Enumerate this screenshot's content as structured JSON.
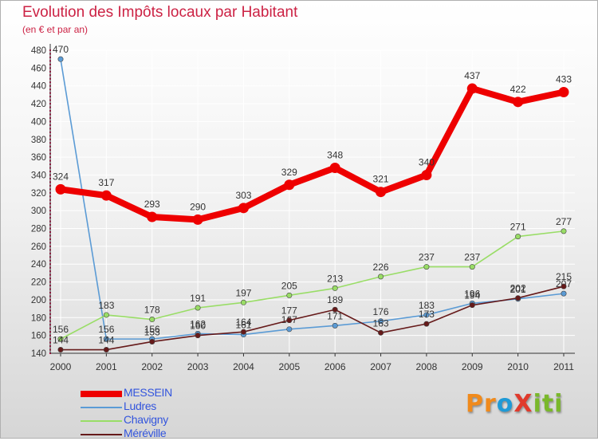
{
  "title": "Evolution des Impôts locaux par Habitant",
  "subtitle": "(en € et par an)",
  "logo_text": "ProXiti",
  "colors": {
    "title": "#cc2244",
    "legend_text": "#3355dd",
    "grid": "#ffffff",
    "axis_dots": "#e2004a"
  },
  "chart_data": {
    "type": "line",
    "title": "Evolution des Impôts locaux par Habitant",
    "subtitle": "(en € et par an)",
    "xlabel": "",
    "ylabel": "",
    "categories": [
      "2000",
      "2001",
      "2002",
      "2003",
      "2004",
      "2005",
      "2006",
      "2007",
      "2008",
      "2009",
      "2010",
      "2011"
    ],
    "ylim": [
      140,
      480
    ],
    "yticks": [
      140,
      160,
      180,
      200,
      220,
      240,
      260,
      280,
      300,
      320,
      340,
      360,
      380,
      400,
      420,
      440,
      460,
      480
    ],
    "grid": true,
    "legend_position": "bottom-left",
    "series": [
      {
        "name": "MESSEIN",
        "color": "#ee0000",
        "emphasis": true,
        "values": [
          324,
          317,
          293,
          290,
          303,
          329,
          348,
          321,
          340,
          437,
          422,
          433
        ]
      },
      {
        "name": "Ludres",
        "color": "#5b9bd5",
        "emphasis": false,
        "values": [
          470,
          156,
          156,
          162,
          161,
          167,
          171,
          176,
          183,
          196,
          201,
          207
        ]
      },
      {
        "name": "Chavigny",
        "color": "#99dd66",
        "emphasis": false,
        "values": [
          156,
          183,
          178,
          191,
          197,
          205,
          213,
          226,
          237,
          237,
          271,
          277
        ]
      },
      {
        "name": "Méréville",
        "color": "#661a1a",
        "emphasis": false,
        "values": [
          144,
          144,
          153,
          160,
          164,
          177,
          189,
          163,
          173,
          194,
          202,
          215
        ]
      }
    ]
  }
}
